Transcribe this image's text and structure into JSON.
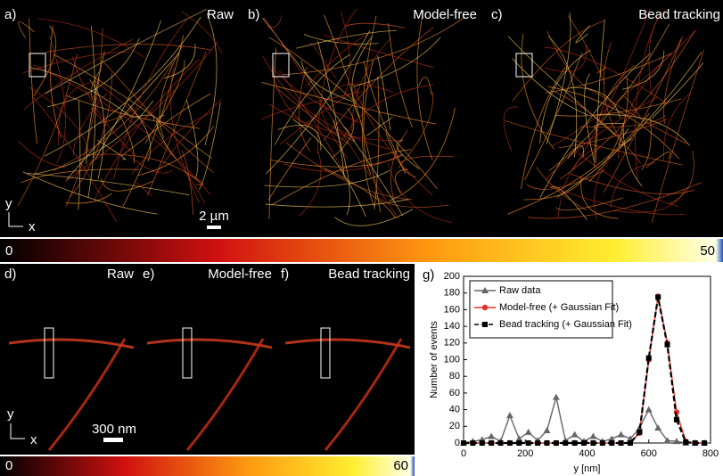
{
  "top_panels": [
    {
      "label": "a)",
      "title": "Raw"
    },
    {
      "label": "b)",
      "title": "Model-free"
    },
    {
      "label": "c)",
      "title": "Bead tracking"
    }
  ],
  "top_scale_bar": "2 µm",
  "top_axes": {
    "y": "y",
    "x": "x"
  },
  "top_colorbar": {
    "min": 0,
    "max": 50
  },
  "bottom_panels": [
    {
      "label": "d)",
      "title": "Raw"
    },
    {
      "label": "e)",
      "title": "Model-free"
    },
    {
      "label": "f)",
      "title": "Bead tracking"
    }
  ],
  "bottom_scale_bar": "300 nm",
  "bottom_axes": {
    "y": "y",
    "x": "x"
  },
  "bottom_colorbar": {
    "min": 0,
    "max": 60
  },
  "chart_data": {
    "type": "line",
    "panel_label": "g)",
    "x_label": "y [nm]",
    "y_label": "Number of events",
    "x": [
      0,
      30,
      60,
      90,
      120,
      150,
      180,
      210,
      240,
      270,
      300,
      330,
      360,
      390,
      420,
      450,
      480,
      510,
      540,
      570,
      600,
      630,
      660,
      690,
      720,
      750,
      780
    ],
    "series": [
      {
        "name": "Raw data",
        "color": "#666666",
        "marker": "triangle",
        "dash": false,
        "values": [
          0,
          2,
          4,
          8,
          2,
          33,
          5,
          13,
          3,
          15,
          55,
          3,
          10,
          2,
          8,
          2,
          5,
          10,
          5,
          18,
          40,
          18,
          3,
          2,
          0,
          0,
          0
        ]
      },
      {
        "name": "Model-free (+ Gaussian Fit)",
        "color": "#e8302a",
        "marker": "circle",
        "dash": false,
        "values": [
          0,
          0,
          0,
          0,
          0,
          0,
          0,
          0,
          0,
          0,
          0,
          0,
          0,
          0,
          0,
          0,
          0,
          0,
          0,
          12,
          100,
          176,
          120,
          37,
          2,
          0,
          0
        ]
      },
      {
        "name": "Bead tracking (+ Gaussian Fit)",
        "color": "#000000",
        "marker": "square",
        "dash": true,
        "values": [
          0,
          0,
          0,
          0,
          0,
          0,
          0,
          0,
          0,
          0,
          0,
          0,
          0,
          0,
          0,
          0,
          0,
          0,
          0,
          13,
          102,
          175,
          118,
          28,
          1,
          0,
          0
        ]
      }
    ],
    "xlim": [
      0,
      800
    ],
    "xticks": [
      0,
      200,
      400,
      600,
      800
    ],
    "ylim": [
      0,
      200
    ],
    "yticks": [
      0,
      20,
      40,
      60,
      80,
      100,
      120,
      140,
      160,
      180,
      200
    ]
  }
}
